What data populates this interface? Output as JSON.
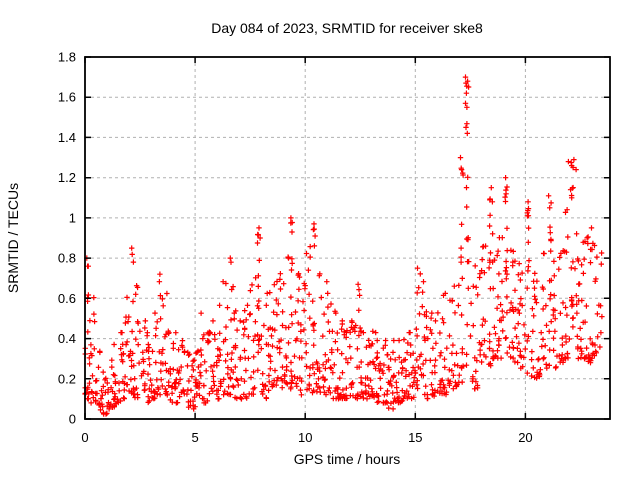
{
  "figure": {
    "background": "#ffffff",
    "text_color": "#000000",
    "border_color": "#000000"
  },
  "chart_data": {
    "type": "scatter",
    "title": "Day 084 of 2023, SRMTID for receiver ske8",
    "xlabel": "GPS time / hours",
    "ylabel": "SRMTID / TECUs",
    "xlim": [
      0,
      23.84
    ],
    "ylim": [
      0,
      1.8
    ],
    "xticks": [
      0,
      5,
      10,
      15,
      20
    ],
    "yticks": [
      0,
      0.2,
      0.4,
      0.6,
      0.8,
      1,
      1.2,
      1.4,
      1.6,
      1.8
    ],
    "grid": true,
    "legend": "none",
    "marker": "plus",
    "marker_color": "#ff0000",
    "grid_color": "#b0b0b0",
    "series_name": "SRMTID",
    "envelope_bins": {
      "note": "dense scatter summarized as [start_hour, y_min, y_max, point_count] per 0.25 h bin; points cluster toward y_min with tail to y_max",
      "bin_width_hours": 0.25,
      "bins": [
        [
          0.0,
          0.1,
          0.78,
          20
        ],
        [
          0.25,
          0.08,
          0.62,
          16
        ],
        [
          0.5,
          0.04,
          0.34,
          13
        ],
        [
          0.75,
          0.02,
          0.24,
          12
        ],
        [
          1.0,
          0.05,
          0.3,
          13
        ],
        [
          1.25,
          0.06,
          0.38,
          15
        ],
        [
          1.5,
          0.08,
          0.44,
          15
        ],
        [
          1.75,
          0.1,
          0.62,
          15
        ],
        [
          2.0,
          0.12,
          0.84,
          16
        ],
        [
          2.25,
          0.1,
          0.68,
          15
        ],
        [
          2.5,
          0.1,
          0.5,
          14
        ],
        [
          2.75,
          0.08,
          0.44,
          14
        ],
        [
          3.0,
          0.1,
          0.54,
          14
        ],
        [
          3.25,
          0.12,
          0.7,
          15
        ],
        [
          3.5,
          0.1,
          0.64,
          14
        ],
        [
          3.75,
          0.08,
          0.44,
          13
        ],
        [
          4.0,
          0.08,
          0.44,
          13
        ],
        [
          4.25,
          0.06,
          0.4,
          13
        ],
        [
          4.5,
          0.05,
          0.34,
          12
        ],
        [
          4.75,
          0.05,
          0.3,
          13
        ],
        [
          5.0,
          0.06,
          0.34,
          15
        ],
        [
          5.25,
          0.08,
          0.54,
          14
        ],
        [
          5.5,
          0.08,
          0.44,
          13
        ],
        [
          5.75,
          0.1,
          0.5,
          13
        ],
        [
          6.0,
          0.1,
          0.58,
          14
        ],
        [
          6.25,
          0.12,
          0.7,
          14
        ],
        [
          6.5,
          0.12,
          0.8,
          15
        ],
        [
          6.75,
          0.1,
          0.54,
          13
        ],
        [
          7.0,
          0.1,
          0.5,
          13
        ],
        [
          7.25,
          0.1,
          0.58,
          13
        ],
        [
          7.5,
          0.12,
          0.72,
          14
        ],
        [
          7.75,
          0.12,
          0.94,
          15
        ],
        [
          8.0,
          0.1,
          0.58,
          14
        ],
        [
          8.25,
          0.12,
          0.64,
          14
        ],
        [
          8.5,
          0.15,
          0.7,
          15
        ],
        [
          8.75,
          0.15,
          0.74,
          15
        ],
        [
          9.0,
          0.15,
          0.82,
          15
        ],
        [
          9.25,
          0.15,
          1.0,
          16
        ],
        [
          9.5,
          0.15,
          0.74,
          15
        ],
        [
          9.75,
          0.12,
          0.68,
          14
        ],
        [
          10.0,
          0.12,
          0.88,
          15
        ],
        [
          10.25,
          0.12,
          0.97,
          15
        ],
        [
          10.5,
          0.12,
          0.74,
          14
        ],
        [
          10.75,
          0.12,
          0.7,
          14
        ],
        [
          11.0,
          0.12,
          0.64,
          14
        ],
        [
          11.25,
          0.1,
          0.54,
          14
        ],
        [
          11.5,
          0.1,
          0.5,
          14
        ],
        [
          11.75,
          0.1,
          0.44,
          14
        ],
        [
          12.0,
          0.1,
          0.5,
          14
        ],
        [
          12.25,
          0.1,
          0.66,
          14
        ],
        [
          12.5,
          0.1,
          0.44,
          14
        ],
        [
          12.75,
          0.1,
          0.4,
          14
        ],
        [
          13.0,
          0.1,
          0.44,
          15
        ],
        [
          13.25,
          0.08,
          0.4,
          15
        ],
        [
          13.5,
          0.08,
          0.4,
          15
        ],
        [
          13.75,
          0.05,
          0.34,
          14
        ],
        [
          14.0,
          0.08,
          0.4,
          14
        ],
        [
          14.25,
          0.08,
          0.4,
          14
        ],
        [
          14.5,
          0.1,
          0.44,
          14
        ],
        [
          14.75,
          0.1,
          0.44,
          14
        ],
        [
          15.0,
          0.12,
          0.74,
          14
        ],
        [
          15.25,
          0.12,
          0.7,
          14
        ],
        [
          15.5,
          0.1,
          0.54,
          13
        ],
        [
          15.75,
          0.1,
          0.5,
          13
        ],
        [
          16.0,
          0.12,
          0.54,
          13
        ],
        [
          16.25,
          0.12,
          0.64,
          13
        ],
        [
          16.5,
          0.15,
          0.6,
          13
        ],
        [
          16.75,
          0.15,
          0.68,
          13
        ],
        [
          17.0,
          0.18,
          1.28,
          15
        ],
        [
          17.25,
          0.2,
          1.7,
          16
        ],
        [
          17.5,
          0.15,
          0.78,
          12
        ],
        [
          17.75,
          0.15,
          0.74,
          12
        ],
        [
          18.0,
          0.2,
          0.88,
          14
        ],
        [
          18.25,
          0.25,
          1.12,
          16
        ],
        [
          18.5,
          0.3,
          0.94,
          17
        ],
        [
          18.75,
          0.3,
          0.92,
          17
        ],
        [
          19.0,
          0.3,
          1.18,
          16
        ],
        [
          19.25,
          0.3,
          0.85,
          15
        ],
        [
          19.5,
          0.28,
          0.8,
          14
        ],
        [
          19.75,
          0.25,
          0.74,
          14
        ],
        [
          20.0,
          0.22,
          1.05,
          14
        ],
        [
          20.25,
          0.2,
          0.74,
          13
        ],
        [
          20.5,
          0.2,
          0.7,
          13
        ],
        [
          20.75,
          0.25,
          0.84,
          13
        ],
        [
          21.0,
          0.25,
          1.1,
          14
        ],
        [
          21.25,
          0.25,
          0.8,
          13
        ],
        [
          21.5,
          0.28,
          0.84,
          14
        ],
        [
          21.75,
          0.3,
          1.05,
          15
        ],
        [
          22.0,
          0.3,
          1.28,
          15
        ],
        [
          22.25,
          0.3,
          0.94,
          15
        ],
        [
          22.5,
          0.3,
          0.9,
          16
        ],
        [
          22.75,
          0.28,
          0.92,
          16
        ],
        [
          23.0,
          0.3,
          0.88,
          15
        ],
        [
          23.25,
          0.35,
          0.84,
          9
        ]
      ]
    },
    "outlier_points": [
      [
        0.08,
        0.8
      ],
      [
        0.12,
        0.76
      ],
      [
        2.12,
        0.85
      ],
      [
        2.2,
        0.78
      ],
      [
        3.4,
        0.72
      ],
      [
        6.6,
        0.8
      ],
      [
        7.9,
        0.95
      ],
      [
        7.95,
        0.9
      ],
      [
        9.35,
        1.0
      ],
      [
        9.4,
        0.93
      ],
      [
        10.4,
        0.97
      ],
      [
        10.45,
        0.91
      ],
      [
        12.4,
        0.67
      ],
      [
        15.1,
        0.75
      ],
      [
        17.05,
        1.3
      ],
      [
        17.1,
        1.24
      ],
      [
        17.28,
        1.7
      ],
      [
        17.3,
        1.67
      ],
      [
        17.32,
        1.62
      ],
      [
        17.28,
        1.57
      ],
      [
        17.34,
        1.55
      ],
      [
        17.3,
        1.45
      ],
      [
        17.36,
        1.42
      ],
      [
        18.45,
        1.15
      ],
      [
        18.5,
        1.08
      ],
      [
        19.1,
        1.2
      ],
      [
        19.12,
        1.12
      ],
      [
        20.12,
        1.08
      ],
      [
        21.05,
        1.11
      ],
      [
        21.1,
        1.05
      ],
      [
        21.95,
        1.28
      ],
      [
        22.1,
        1.26
      ],
      [
        22.2,
        1.29
      ],
      [
        22.3,
        1.24
      ],
      [
        22.05,
        1.14
      ],
      [
        22.1,
        1.1
      ],
      [
        23.0,
        0.95
      ]
    ],
    "render_seed": 42,
    "y_bias_exponent": 1.9
  }
}
